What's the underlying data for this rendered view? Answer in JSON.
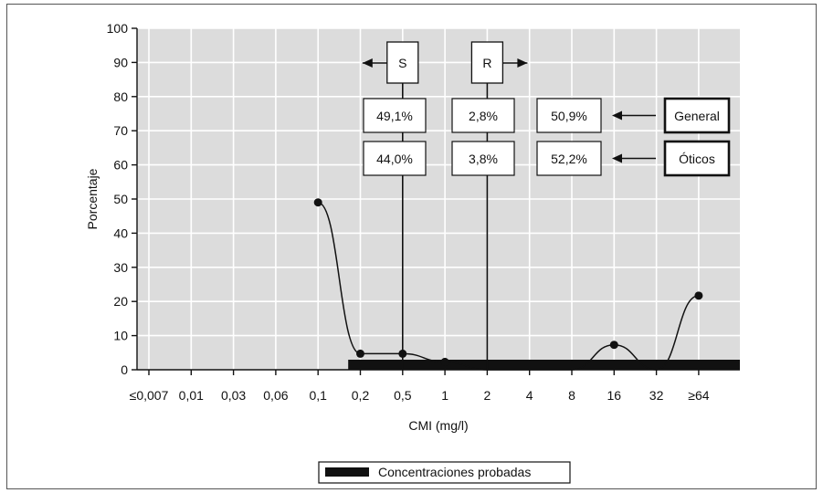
{
  "chart_data": {
    "type": "line",
    "xlabel": "CMI (mg/l)",
    "ylabel": "Porcentaje",
    "ylim": [
      0,
      100
    ],
    "yticks": [
      0,
      10,
      20,
      30,
      40,
      50,
      60,
      70,
      80,
      90,
      100
    ],
    "categories": [
      "≤0,007",
      "0,01",
      "0,03",
      "0,06",
      "0,1",
      "0,2",
      "0,5",
      "1",
      "2",
      "4",
      "8",
      "16",
      "32",
      "≥64"
    ],
    "grid": true,
    "series": [
      {
        "values": [
          null,
          null,
          null,
          null,
          49,
          4.7,
          4.7,
          2.3,
          0,
          0,
          0,
          7.3,
          0,
          21.7
        ]
      }
    ],
    "tested_concentrations": {
      "label": "Concentraciones probadas",
      "from": "0,1",
      "to": "≥64"
    },
    "breakpoints": [
      {
        "label": "S",
        "at": "0,5",
        "direction": "left"
      },
      {
        "label": "R",
        "at": "2",
        "direction": "right"
      }
    ],
    "percent_boxes": {
      "rows": [
        {
          "name": "General",
          "values": [
            "49,1%",
            "2,8%",
            "50,9%"
          ]
        },
        {
          "name": "Óticos",
          "values": [
            "44,0%",
            "3,8%",
            "52,2%"
          ]
        }
      ]
    },
    "legend": {
      "entries": [
        "Concentraciones probadas"
      ],
      "position": "bottom-center"
    }
  }
}
